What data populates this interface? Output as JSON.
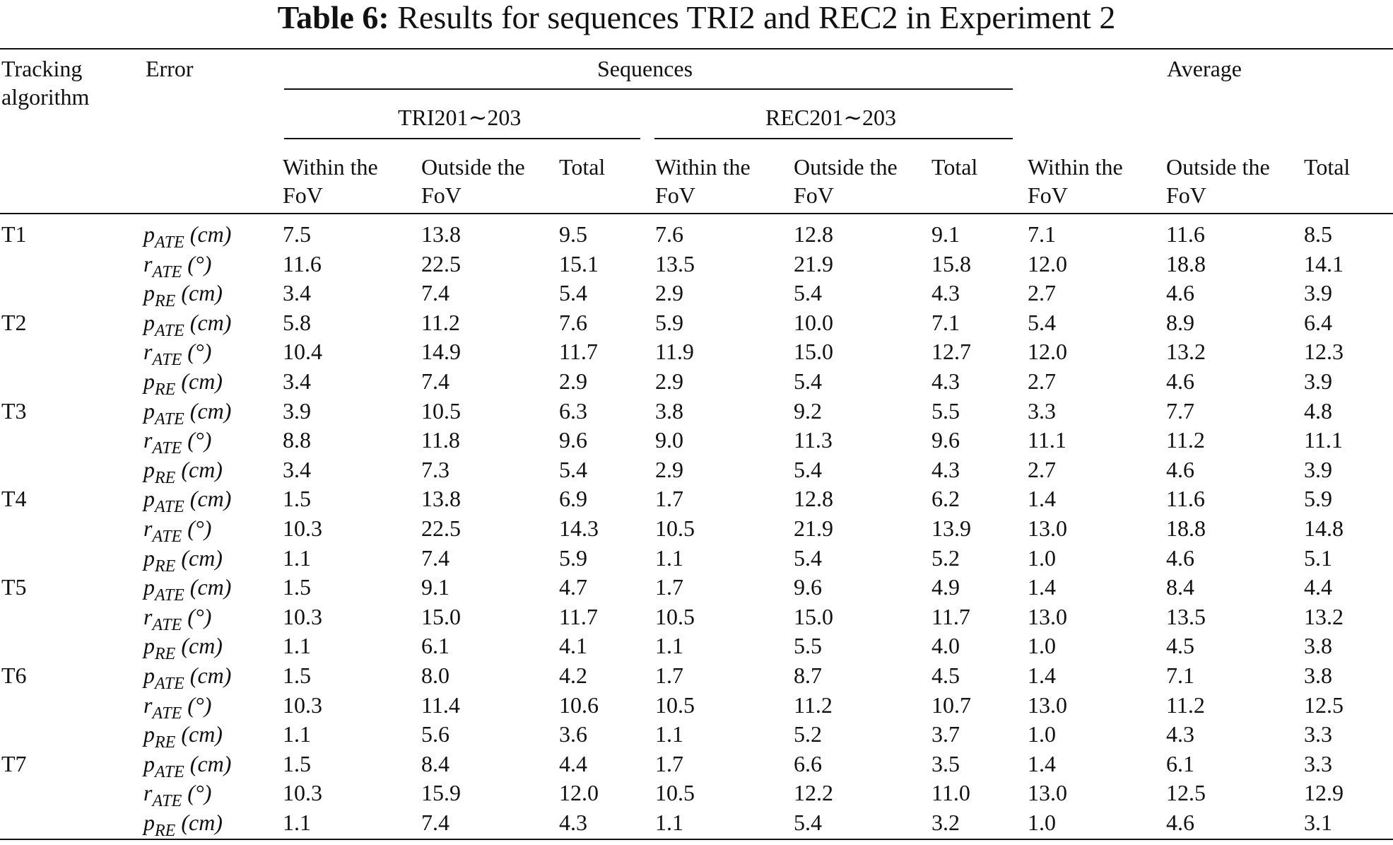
{
  "caption": {
    "label": "Table 6:",
    "text": "Results for sequences TRI2 and REC2 in Experiment 2"
  },
  "header": {
    "col_tracker_1": "Tracking",
    "col_tracker_2": "algorithm",
    "col_error": "Error",
    "group_sequences": "Sequences",
    "group_average": "Average",
    "sub_tri": "TRI201∼203",
    "sub_rec": "REC201∼203",
    "within_1": "Within the",
    "within_2": "FoV",
    "outside_1": "Outside the",
    "outside_2": "FoV",
    "total": "Total"
  },
  "metrics": [
    {
      "base": "p",
      "sub": "ATE",
      "unit": "(cm)"
    },
    {
      "base": "r",
      "sub": "ATE",
      "unit": "(°)"
    },
    {
      "base": "p",
      "sub": "RE",
      "unit": "(cm)"
    }
  ],
  "rows": [
    {
      "tracker": "T1",
      "values": [
        [
          "7.5",
          "13.8",
          "9.5",
          "7.6",
          "12.8",
          "9.1",
          "7.1",
          "11.6",
          "8.5"
        ],
        [
          "11.6",
          "22.5",
          "15.1",
          "13.5",
          "21.9",
          "15.8",
          "12.0",
          "18.8",
          "14.1"
        ],
        [
          "3.4",
          "7.4",
          "5.4",
          "2.9",
          "5.4",
          "4.3",
          "2.7",
          "4.6",
          "3.9"
        ]
      ]
    },
    {
      "tracker": "T2",
      "values": [
        [
          "5.8",
          "11.2",
          "7.6",
          "5.9",
          "10.0",
          "7.1",
          "5.4",
          "8.9",
          "6.4"
        ],
        [
          "10.4",
          "14.9",
          "11.7",
          "11.9",
          "15.0",
          "12.7",
          "12.0",
          "13.2",
          "12.3"
        ],
        [
          "3.4",
          "7.4",
          "2.9",
          "2.9",
          "5.4",
          "4.3",
          "2.7",
          "4.6",
          "3.9"
        ]
      ]
    },
    {
      "tracker": "T3",
      "values": [
        [
          "3.9",
          "10.5",
          "6.3",
          "3.8",
          "9.2",
          "5.5",
          "3.3",
          "7.7",
          "4.8"
        ],
        [
          "8.8",
          "11.8",
          "9.6",
          "9.0",
          "11.3",
          "9.6",
          "11.1",
          "11.2",
          "11.1"
        ],
        [
          "3.4",
          "7.3",
          "5.4",
          "2.9",
          "5.4",
          "4.3",
          "2.7",
          "4.6",
          "3.9"
        ]
      ]
    },
    {
      "tracker": "T4",
      "values": [
        [
          "1.5",
          "13.8",
          "6.9",
          "1.7",
          "12.8",
          "6.2",
          "1.4",
          "11.6",
          "5.9"
        ],
        [
          "10.3",
          "22.5",
          "14.3",
          "10.5",
          "21.9",
          "13.9",
          "13.0",
          "18.8",
          "14.8"
        ],
        [
          "1.1",
          "7.4",
          "5.9",
          "1.1",
          "5.4",
          "5.2",
          "1.0",
          "4.6",
          "5.1"
        ]
      ]
    },
    {
      "tracker": "T5",
      "values": [
        [
          "1.5",
          "9.1",
          "4.7",
          "1.7",
          "9.6",
          "4.9",
          "1.4",
          "8.4",
          "4.4"
        ],
        [
          "10.3",
          "15.0",
          "11.7",
          "10.5",
          "15.0",
          "11.7",
          "13.0",
          "13.5",
          "13.2"
        ],
        [
          "1.1",
          "6.1",
          "4.1",
          "1.1",
          "5.5",
          "4.0",
          "1.0",
          "4.5",
          "3.8"
        ]
      ]
    },
    {
      "tracker": "T6",
      "values": [
        [
          "1.5",
          "8.0",
          "4.2",
          "1.7",
          "8.7",
          "4.5",
          "1.4",
          "7.1",
          "3.8"
        ],
        [
          "10.3",
          "11.4",
          "10.6",
          "10.5",
          "11.2",
          "10.7",
          "13.0",
          "11.2",
          "12.5"
        ],
        [
          "1.1",
          "5.6",
          "3.6",
          "1.1",
          "5.2",
          "3.7",
          "1.0",
          "4.3",
          "3.3"
        ]
      ]
    },
    {
      "tracker": "T7",
      "values": [
        [
          "1.5",
          "8.4",
          "4.4",
          "1.7",
          "6.6",
          "3.5",
          "1.4",
          "6.1",
          "3.3"
        ],
        [
          "10.3",
          "15.9",
          "12.0",
          "10.5",
          "12.2",
          "11.0",
          "13.0",
          "12.5",
          "12.9"
        ],
        [
          "1.1",
          "7.4",
          "4.3",
          "1.1",
          "5.4",
          "3.2",
          "1.0",
          "4.6",
          "3.1"
        ]
      ]
    }
  ]
}
